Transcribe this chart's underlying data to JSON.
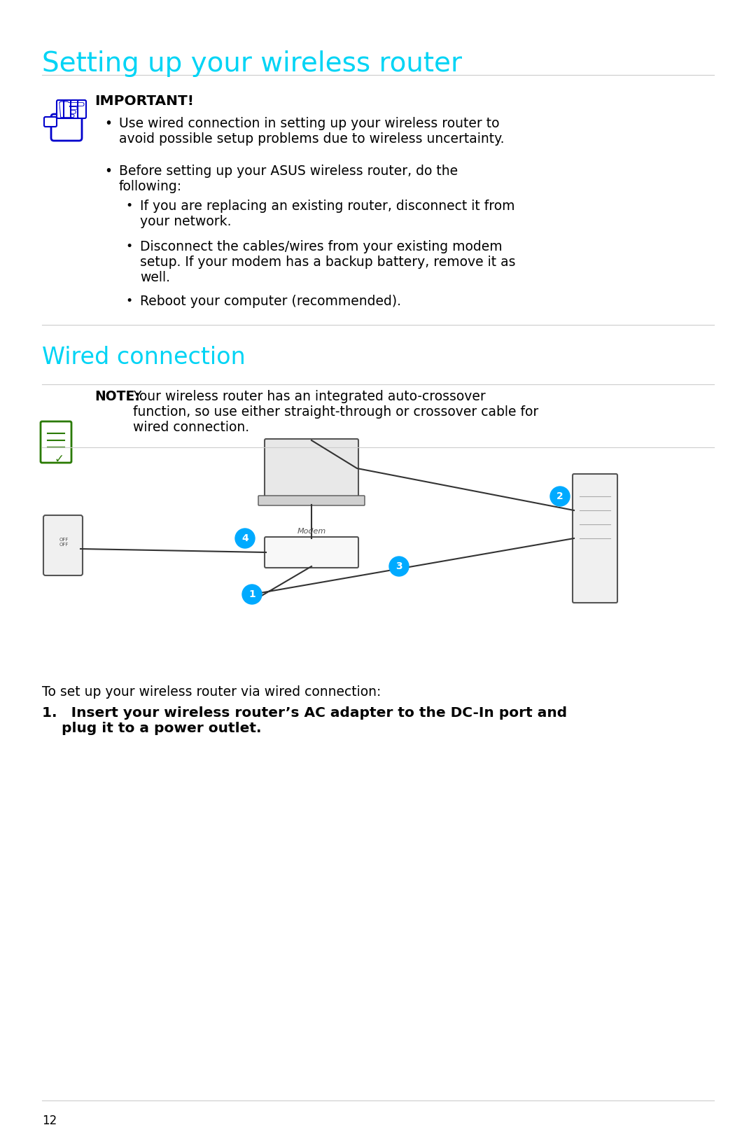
{
  "bg_color": "#ffffff",
  "title": "Setting up your wireless router",
  "title_color": "#00d4f5",
  "title_fontsize": 28,
  "section2_title": "Wired connection",
  "section2_color": "#00d4f5",
  "section2_fontsize": 24,
  "important_label": "IMPORTANT!",
  "important_bullets": [
    "Use wired connection in setting up your wireless router to\navoid possible setup problems due to wireless uncertainty.",
    "Before setting up your ASUS wireless router, do the\nfollowing:",
    "If you are replacing an existing router, disconnect it from\nyour network.",
    "Disconnect the cables/wires from your existing modem\nsetup. If your modem has a backup battery, remove it as\nwell.",
    "Reboot your computer (recommended)."
  ],
  "note_label": "NOTE:",
  "note_text": "Your wireless router has an integrated auto-crossover\nfunction, so use either straight-through or crossover cable for\nwired connection.",
  "step1_text": "To set up your wireless router via wired connection:",
  "step1_numbered": "1. Insert your wireless router’s AC adapter to the DC-In port and\n    plug it to a power outlet.",
  "footer_number": "12",
  "hand_icon_color": "#0000cc",
  "note_icon_color": "#2a7a00",
  "line_color": "#cccccc",
  "text_color": "#000000",
  "body_fontsize": 13.5
}
